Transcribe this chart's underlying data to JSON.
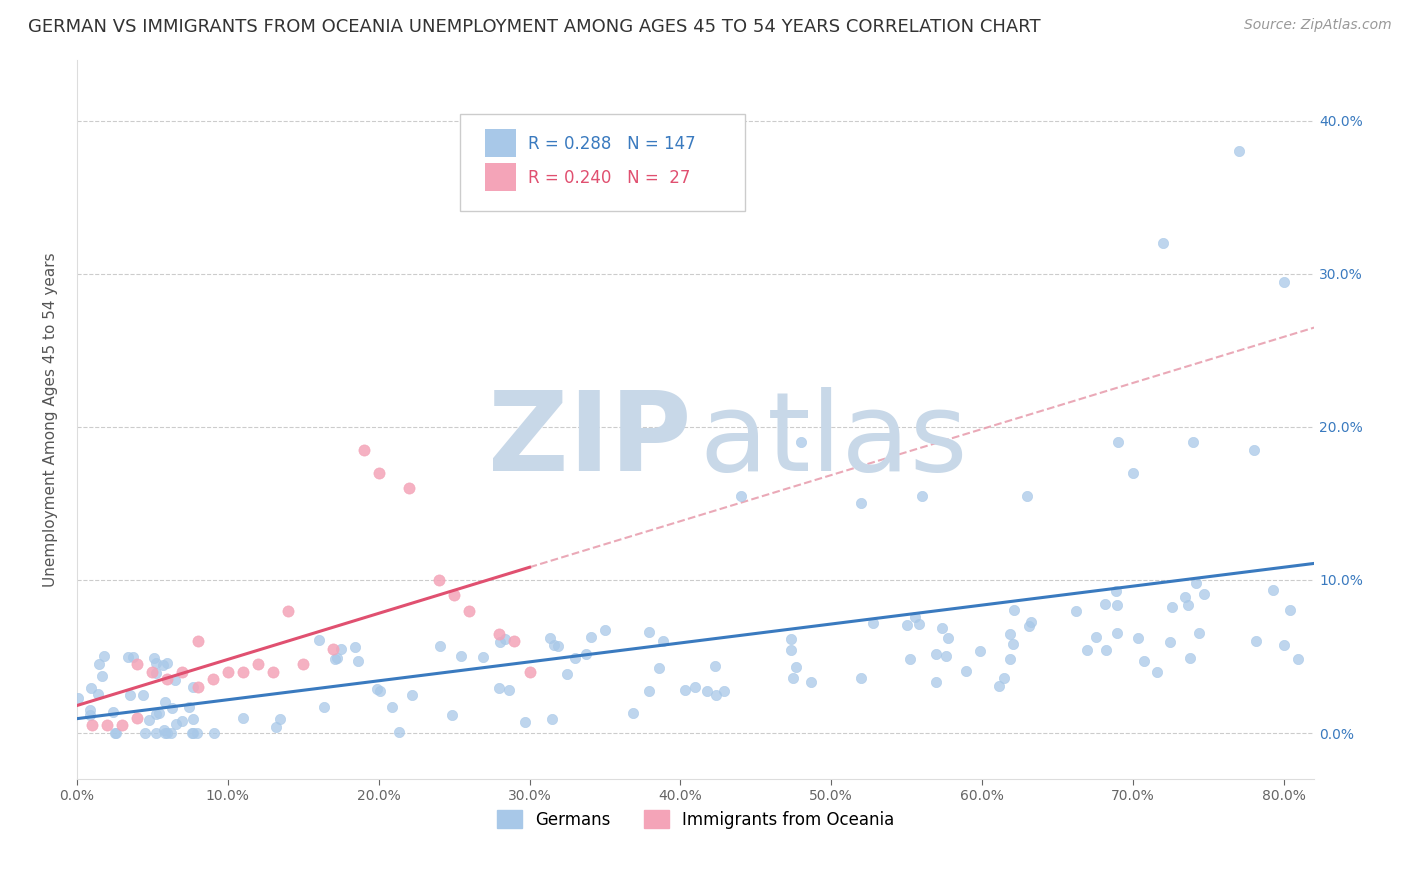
{
  "title": "GERMAN VS IMMIGRANTS FROM OCEANIA UNEMPLOYMENT AMONG AGES 45 TO 54 YEARS CORRELATION CHART",
  "source": "Source: ZipAtlas.com",
  "ylabel": "Unemployment Among Ages 45 to 54 years",
  "xlim": [
    0.0,
    0.82
  ],
  "ylim": [
    -0.03,
    0.44
  ],
  "german_R": 0.288,
  "german_N": 147,
  "oceania_R": 0.24,
  "oceania_N": 27,
  "german_color": "#a8c8e8",
  "oceania_color": "#f4a4b8",
  "german_line_color": "#3a7abf",
  "oceania_line_color": "#e05070",
  "dashed_line_color": "#e8a0b0",
  "watermark_zip_color": "#c8d8e8",
  "watermark_atlas_color": "#c8d8e8",
  "title_fontsize": 13,
  "axis_label_fontsize": 11,
  "tick_fontsize": 10,
  "legend_fontsize": 12,
  "source_fontsize": 10,
  "legend_blue_color": "#3a7abf",
  "legend_pink_color": "#e05070"
}
